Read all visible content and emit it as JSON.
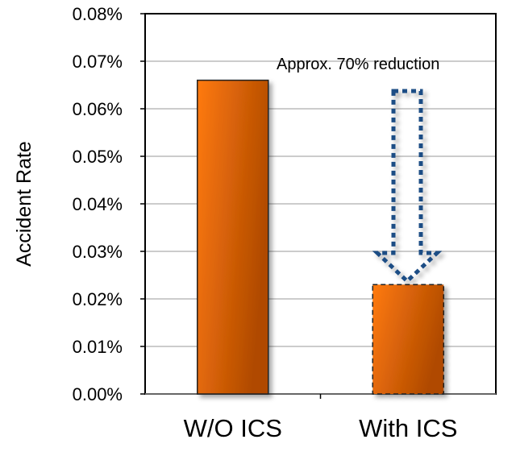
{
  "chart_data": {
    "type": "bar",
    "title": "",
    "xlabel": "",
    "ylabel": "Accident Rate",
    "categories": [
      "W/O ICS",
      "With ICS"
    ],
    "values": [
      0.066,
      0.023
    ],
    "value_unit": "%",
    "ylim": [
      0,
      0.08
    ],
    "yticks": [
      "0.00%",
      "0.01%",
      "0.02%",
      "0.03%",
      "0.04%",
      "0.05%",
      "0.06%",
      "0.07%",
      "0.08%"
    ],
    "grid": true,
    "annotation": "Approx. 70% reduction",
    "colors": {
      "bar_light": "#ff7a0a",
      "bar_dark": "#b04a04",
      "arrow": "#1f4e85",
      "grid": "#cccccc"
    }
  }
}
